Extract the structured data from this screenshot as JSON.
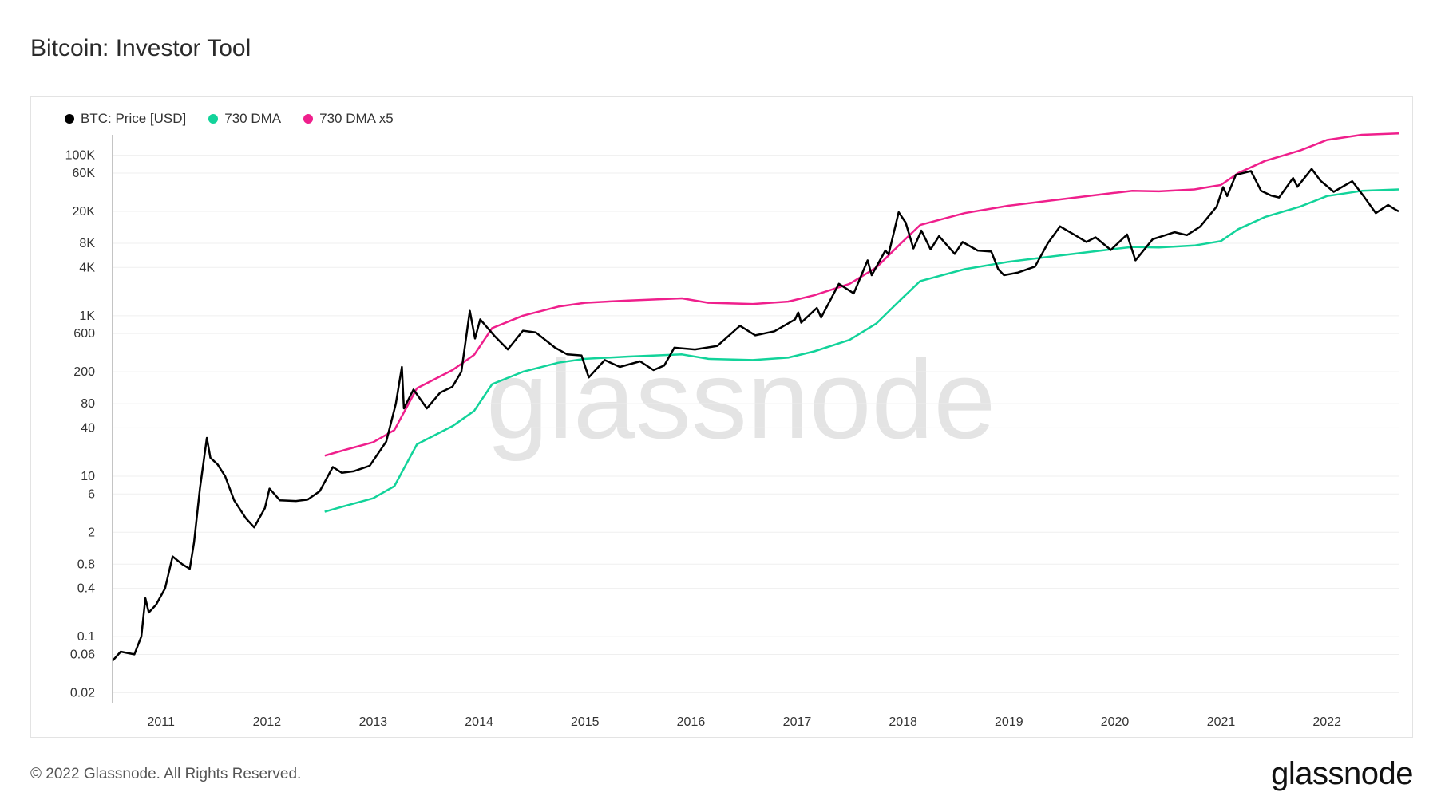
{
  "page": {
    "title": "Bitcoin: Investor Tool",
    "copyright": "© 2022 Glassnode. All Rights Reserved.",
    "logo": "glassnode",
    "watermark": "glassnode"
  },
  "colors": {
    "price": "#000000",
    "dma": "#12d39a",
    "dma_x5": "#ef1f8c",
    "grid": "#efefef"
  },
  "chart_data": {
    "type": "line",
    "title": "Bitcoin: Investor Tool",
    "y_scale": "log",
    "ylim": [
      0.015,
      180000
    ],
    "xlim": [
      "2010-07-18",
      "2022-09-05"
    ],
    "grid": true,
    "legend_position": "top-left",
    "y_ticks": [
      {
        "value": 0.02,
        "label": "0.02"
      },
      {
        "value": 0.06,
        "label": "0.06"
      },
      {
        "value": 0.1,
        "label": "0.1"
      },
      {
        "value": 0.4,
        "label": "0.4"
      },
      {
        "value": 0.8,
        "label": "0.8"
      },
      {
        "value": 2,
        "label": "2"
      },
      {
        "value": 6,
        "label": "6"
      },
      {
        "value": 10,
        "label": "10"
      },
      {
        "value": 40,
        "label": "40"
      },
      {
        "value": 80,
        "label": "80"
      },
      {
        "value": 200,
        "label": "200"
      },
      {
        "value": 600,
        "label": "600"
      },
      {
        "value": 1000,
        "label": "1K"
      },
      {
        "value": 4000,
        "label": "4K"
      },
      {
        "value": 8000,
        "label": "8K"
      },
      {
        "value": 20000,
        "label": "20K"
      },
      {
        "value": 60000,
        "label": "60K"
      },
      {
        "value": 100000,
        "label": "100K"
      }
    ],
    "x_ticks": [
      {
        "value": "2011-01-01",
        "label": "2011"
      },
      {
        "value": "2012-01-01",
        "label": "2012"
      },
      {
        "value": "2013-01-01",
        "label": "2013"
      },
      {
        "value": "2014-01-01",
        "label": "2014"
      },
      {
        "value": "2015-01-01",
        "label": "2015"
      },
      {
        "value": "2016-01-01",
        "label": "2016"
      },
      {
        "value": "2017-01-01",
        "label": "2017"
      },
      {
        "value": "2018-01-01",
        "label": "2018"
      },
      {
        "value": "2019-01-01",
        "label": "2019"
      },
      {
        "value": "2020-01-01",
        "label": "2020"
      },
      {
        "value": "2021-01-01",
        "label": "2021"
      },
      {
        "value": "2022-01-01",
        "label": "2022"
      }
    ],
    "series": [
      {
        "name": "BTC: Price [USD]",
        "color": "#000000",
        "points": [
          [
            "2010-07-18",
            0.05
          ],
          [
            "2010-08-15",
            0.065
          ],
          [
            "2010-10-01",
            0.06
          ],
          [
            "2010-10-25",
            0.1
          ],
          [
            "2010-11-08",
            0.3
          ],
          [
            "2010-11-20",
            0.2
          ],
          [
            "2010-12-15",
            0.25
          ],
          [
            "2011-01-15",
            0.4
          ],
          [
            "2011-02-10",
            1.0
          ],
          [
            "2011-03-15",
            0.8
          ],
          [
            "2011-04-10",
            0.7
          ],
          [
            "2011-04-25",
            1.5
          ],
          [
            "2011-05-15",
            7
          ],
          [
            "2011-06-08",
            30
          ],
          [
            "2011-06-20",
            17
          ],
          [
            "2011-07-15",
            14
          ],
          [
            "2011-08-10",
            10
          ],
          [
            "2011-09-10",
            5
          ],
          [
            "2011-10-20",
            3
          ],
          [
            "2011-11-18",
            2.3
          ],
          [
            "2011-12-25",
            4
          ],
          [
            "2012-01-10",
            7
          ],
          [
            "2012-02-15",
            5
          ],
          [
            "2012-04-10",
            4.9
          ],
          [
            "2012-05-20",
            5.1
          ],
          [
            "2012-07-01",
            6.5
          ],
          [
            "2012-08-15",
            13
          ],
          [
            "2012-09-15",
            11
          ],
          [
            "2012-10-25",
            11.5
          ],
          [
            "2012-12-20",
            13.5
          ],
          [
            "2013-02-15",
            27
          ],
          [
            "2013-03-20",
            80
          ],
          [
            "2013-04-10",
            230
          ],
          [
            "2013-04-17",
            70
          ],
          [
            "2013-05-20",
            120
          ],
          [
            "2013-07-05",
            70
          ],
          [
            "2013-08-20",
            110
          ],
          [
            "2013-10-01",
            130
          ],
          [
            "2013-11-01",
            200
          ],
          [
            "2013-11-30",
            1150
          ],
          [
            "2013-12-18",
            520
          ],
          [
            "2014-01-05",
            900
          ],
          [
            "2014-02-25",
            550
          ],
          [
            "2014-04-10",
            380
          ],
          [
            "2014-06-01",
            650
          ],
          [
            "2014-07-15",
            620
          ],
          [
            "2014-09-20",
            400
          ],
          [
            "2014-11-01",
            330
          ],
          [
            "2014-12-20",
            320
          ],
          [
            "2015-01-14",
            170
          ],
          [
            "2015-03-10",
            280
          ],
          [
            "2015-05-01",
            230
          ],
          [
            "2015-07-10",
            270
          ],
          [
            "2015-08-25",
            210
          ],
          [
            "2015-10-01",
            240
          ],
          [
            "2015-11-05",
            400
          ],
          [
            "2016-01-15",
            380
          ],
          [
            "2016-04-01",
            420
          ],
          [
            "2016-06-18",
            750
          ],
          [
            "2016-08-10",
            570
          ],
          [
            "2016-10-15",
            640
          ],
          [
            "2016-12-25",
            900
          ],
          [
            "2017-01-05",
            1100
          ],
          [
            "2017-01-15",
            820
          ],
          [
            "2017-03-10",
            1250
          ],
          [
            "2017-03-25",
            950
          ],
          [
            "2017-05-25",
            2500
          ],
          [
            "2017-07-15",
            1900
          ],
          [
            "2017-09-01",
            4900
          ],
          [
            "2017-09-15",
            3200
          ],
          [
            "2017-11-01",
            6500
          ],
          [
            "2017-11-12",
            5800
          ],
          [
            "2017-12-17",
            19500
          ],
          [
            "2018-01-10",
            14500
          ],
          [
            "2018-02-06",
            6900
          ],
          [
            "2018-03-05",
            11500
          ],
          [
            "2018-04-06",
            6700
          ],
          [
            "2018-05-05",
            9800
          ],
          [
            "2018-06-28",
            5900
          ],
          [
            "2018-07-25",
            8300
          ],
          [
            "2018-09-15",
            6500
          ],
          [
            "2018-11-01",
            6300
          ],
          [
            "2018-11-25",
            3800
          ],
          [
            "2018-12-15",
            3200
          ],
          [
            "2019-02-01",
            3450
          ],
          [
            "2019-04-01",
            4100
          ],
          [
            "2019-05-15",
            8000
          ],
          [
            "2019-06-26",
            13000
          ],
          [
            "2019-08-15",
            10200
          ],
          [
            "2019-09-25",
            8300
          ],
          [
            "2019-10-26",
            9500
          ],
          [
            "2019-12-18",
            6600
          ],
          [
            "2020-02-12",
            10300
          ],
          [
            "2020-03-12",
            4900
          ],
          [
            "2020-05-10",
            9000
          ],
          [
            "2020-07-25",
            11000
          ],
          [
            "2020-09-05",
            10100
          ],
          [
            "2020-10-21",
            12900
          ],
          [
            "2020-12-17",
            23000
          ],
          [
            "2021-01-08",
            40000
          ],
          [
            "2021-01-22",
            31000
          ],
          [
            "2021-02-21",
            57000
          ],
          [
            "2021-04-14",
            63500
          ],
          [
            "2021-05-19",
            36000
          ],
          [
            "2021-06-22",
            31500
          ],
          [
            "2021-07-20",
            29800
          ],
          [
            "2021-09-06",
            52000
          ],
          [
            "2021-09-21",
            40500
          ],
          [
            "2021-11-09",
            67500
          ],
          [
            "2021-12-10",
            48000
          ],
          [
            "2022-01-24",
            35000
          ],
          [
            "2022-03-29",
            47500
          ],
          [
            "2022-05-10",
            30000
          ],
          [
            "2022-06-18",
            19000
          ],
          [
            "2022-07-30",
            24000
          ],
          [
            "2022-08-25",
            21000
          ],
          [
            "2022-09-05",
            20000
          ]
        ]
      },
      {
        "name": "730 DMA",
        "color": "#12d39a",
        "points": [
          [
            "2012-07-18",
            3.6
          ],
          [
            "2012-10-01",
            4.3
          ],
          [
            "2013-01-01",
            5.3
          ],
          [
            "2013-03-15",
            7.5
          ],
          [
            "2013-06-01",
            25
          ],
          [
            "2013-10-01",
            42
          ],
          [
            "2013-12-15",
            65
          ],
          [
            "2014-02-15",
            140
          ],
          [
            "2014-06-01",
            200
          ],
          [
            "2014-10-01",
            260
          ],
          [
            "2015-01-01",
            290
          ],
          [
            "2015-06-01",
            310
          ],
          [
            "2015-12-01",
            330
          ],
          [
            "2016-03-01",
            290
          ],
          [
            "2016-08-01",
            280
          ],
          [
            "2016-12-01",
            300
          ],
          [
            "2017-03-01",
            360
          ],
          [
            "2017-07-01",
            500
          ],
          [
            "2017-10-01",
            800
          ],
          [
            "2017-12-25",
            1600
          ],
          [
            "2018-03-01",
            2700
          ],
          [
            "2018-08-01",
            3800
          ],
          [
            "2018-12-31",
            4700
          ],
          [
            "2019-06-01",
            5500
          ],
          [
            "2019-12-31",
            6800
          ],
          [
            "2020-03-01",
            7200
          ],
          [
            "2020-06-01",
            7100
          ],
          [
            "2020-10-01",
            7500
          ],
          [
            "2020-12-31",
            8500
          ],
          [
            "2021-03-01",
            12000
          ],
          [
            "2021-06-01",
            17000
          ],
          [
            "2021-10-01",
            23000
          ],
          [
            "2022-01-01",
            31000
          ],
          [
            "2022-05-01",
            36000
          ],
          [
            "2022-09-05",
            37500
          ]
        ]
      },
      {
        "name": "730 DMA x5",
        "color": "#ef1f8c",
        "points": [
          [
            "2012-07-18",
            18
          ],
          [
            "2012-10-01",
            21.5
          ],
          [
            "2013-01-01",
            26.5
          ],
          [
            "2013-03-15",
            37.5
          ],
          [
            "2013-06-01",
            125
          ],
          [
            "2013-10-01",
            210
          ],
          [
            "2013-12-15",
            325
          ],
          [
            "2014-02-15",
            700
          ],
          [
            "2014-06-01",
            1000
          ],
          [
            "2014-10-01",
            1300
          ],
          [
            "2015-01-01",
            1450
          ],
          [
            "2015-06-01",
            1550
          ],
          [
            "2015-12-01",
            1650
          ],
          [
            "2016-03-01",
            1450
          ],
          [
            "2016-08-01",
            1400
          ],
          [
            "2016-12-01",
            1500
          ],
          [
            "2017-03-01",
            1800
          ],
          [
            "2017-07-01",
            2500
          ],
          [
            "2017-10-01",
            4000
          ],
          [
            "2017-12-25",
            8000
          ],
          [
            "2018-03-01",
            13500
          ],
          [
            "2018-08-01",
            19000
          ],
          [
            "2018-12-31",
            23500
          ],
          [
            "2019-06-01",
            27500
          ],
          [
            "2019-12-31",
            34000
          ],
          [
            "2020-03-01",
            36000
          ],
          [
            "2020-06-01",
            35500
          ],
          [
            "2020-10-01",
            37500
          ],
          [
            "2020-12-31",
            42500
          ],
          [
            "2021-03-01",
            60000
          ],
          [
            "2021-06-01",
            85000
          ],
          [
            "2021-10-01",
            115000
          ],
          [
            "2022-01-01",
            155000
          ],
          [
            "2022-05-01",
            180000
          ],
          [
            "2022-09-05",
            187500
          ]
        ]
      }
    ]
  }
}
